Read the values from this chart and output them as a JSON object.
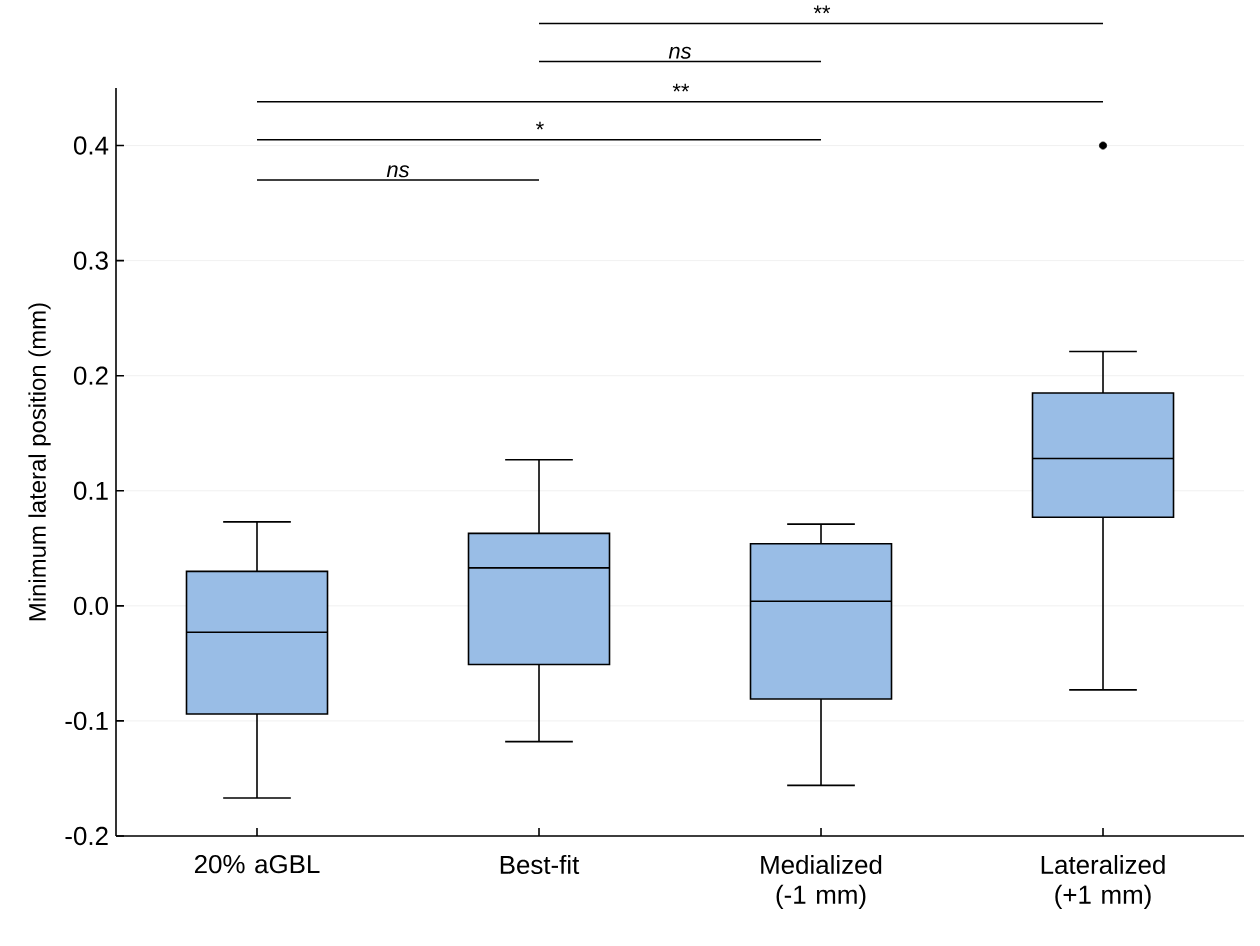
{
  "chart_data": {
    "type": "box",
    "ylabel": "Minimum lateral position (mm)",
    "categories": [
      "20% aGBL",
      "Best-fit",
      "Medialized (-1 mm)",
      "Lateralized (+1 mm)"
    ],
    "color": "#99bde6",
    "boxes": [
      {
        "low": -0.167,
        "q1": -0.094,
        "median": -0.023,
        "q3": 0.03,
        "high": 0.073
      },
      {
        "low": -0.118,
        "q1": -0.051,
        "median": 0.033,
        "q3": 0.063,
        "high": 0.127
      },
      {
        "low": -0.156,
        "q1": -0.081,
        "median": 0.004,
        "q3": 0.054,
        "high": 0.071
      },
      {
        "low": -0.073,
        "q1": 0.077,
        "median": 0.128,
        "q3": 0.185,
        "high": 0.221,
        "outliers": [
          0.4
        ]
      }
    ],
    "ylim": [
      -0.2,
      0.45
    ],
    "yticks": [
      -0.2,
      -0.1,
      {
        "value": 0,
        "label": "0.0"
      },
      0.1,
      0.2,
      0.3,
      0.4
    ],
    "grid": "y",
    "annotations": [
      "**",
      "ns",
      "**",
      "*",
      "ns"
    ]
  }
}
